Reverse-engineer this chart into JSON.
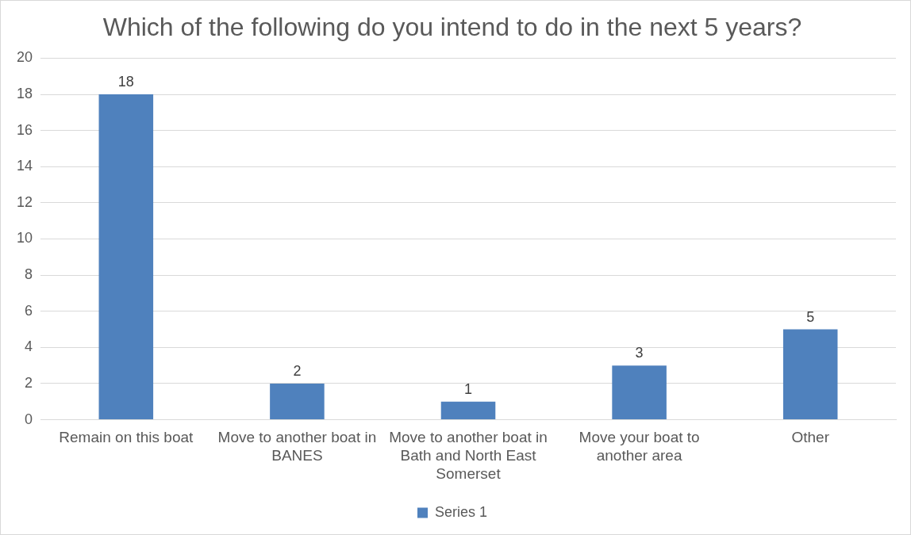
{
  "chart_data": {
    "type": "bar",
    "title": "Which of the following do you intend to do in the next 5 years?",
    "categories": [
      "Remain on this boat",
      "Move to another boat in BANES",
      "Move to another boat in Bath and North East Somerset",
      "Move your boat to another area",
      "Other"
    ],
    "series": [
      {
        "name": "Series 1",
        "color": "#4f81bd",
        "values": [
          18,
          2,
          1,
          3,
          5
        ]
      }
    ],
    "ylim": [
      0,
      20
    ],
    "yticks": [
      0,
      2,
      4,
      6,
      8,
      10,
      12,
      14,
      16,
      18,
      20
    ],
    "grid": "y",
    "legend": "bottom",
    "data_labels": true
  }
}
